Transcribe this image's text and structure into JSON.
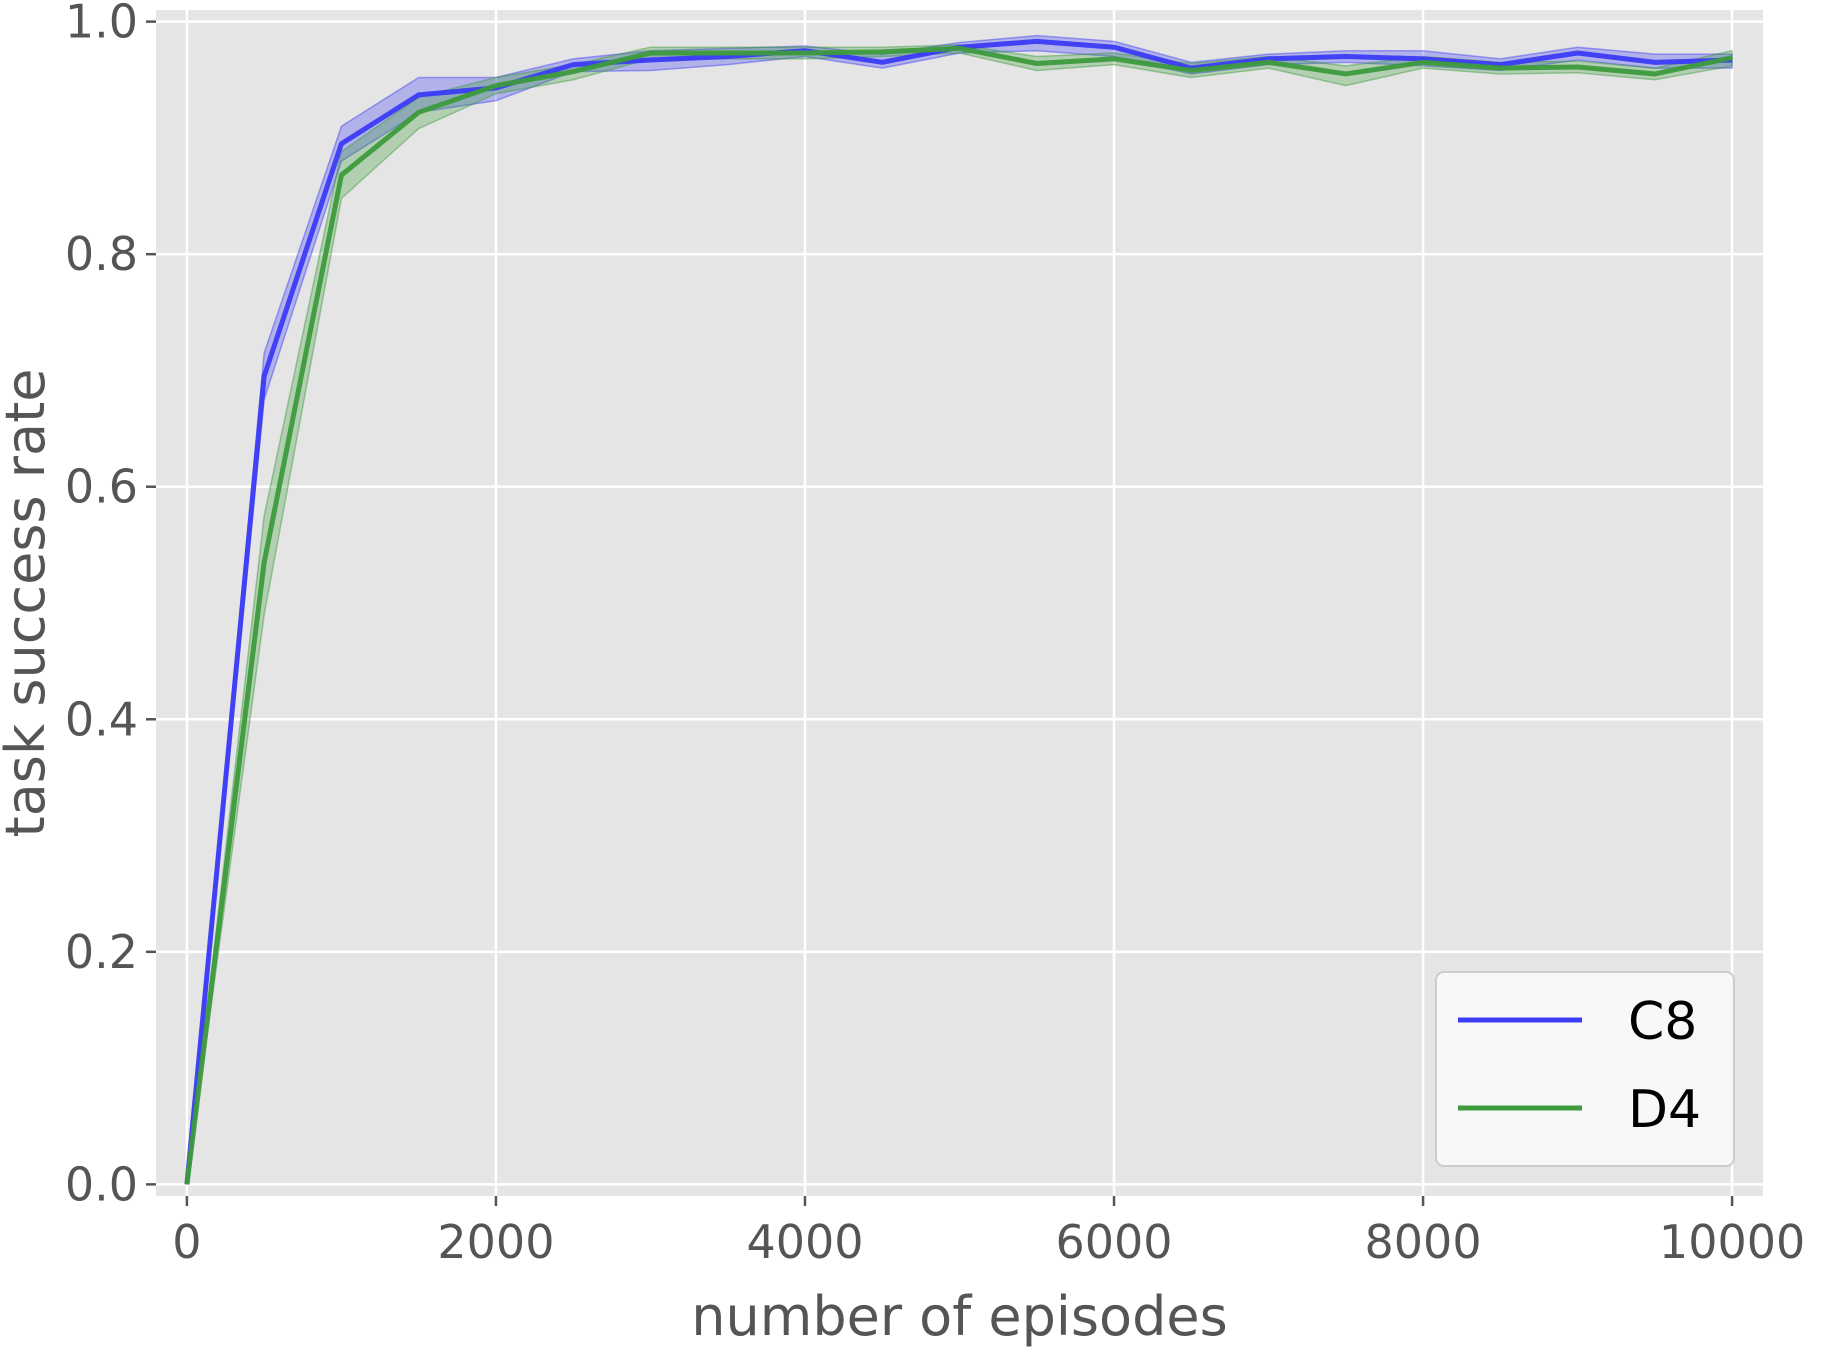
{
  "chart_data": {
    "type": "line",
    "xlabel": "number of episodes",
    "ylabel": "task success rate",
    "xlim": [
      -200,
      10200
    ],
    "ylim": [
      -0.01,
      1.01
    ],
    "xticks": [
      0,
      2000,
      4000,
      6000,
      8000,
      10000
    ],
    "yticks": [
      0.0,
      0.2,
      0.4,
      0.6,
      0.8,
      1.0
    ],
    "xtick_labels": [
      "0",
      "2000",
      "4000",
      "6000",
      "8000",
      "10000"
    ],
    "ytick_labels": [
      "0.0",
      "0.2",
      "0.4",
      "0.6",
      "0.8",
      "1.0"
    ],
    "grid": true,
    "legend_position": "lower-right",
    "x": [
      0,
      500,
      1000,
      1500,
      2000,
      2500,
      3000,
      3500,
      4000,
      4500,
      5000,
      5500,
      6000,
      6500,
      7000,
      7500,
      8000,
      8500,
      9000,
      9500,
      10000
    ],
    "series": [
      {
        "name": "C8",
        "color": "#3b3bf5",
        "values": [
          0.0,
          0.695,
          0.895,
          0.937,
          0.943,
          0.963,
          0.967,
          0.97,
          0.975,
          0.965,
          0.978,
          0.983,
          0.978,
          0.96,
          0.968,
          0.97,
          0.968,
          0.963,
          0.973,
          0.965,
          0.967
        ],
        "lower": [
          0.0,
          0.675,
          0.88,
          0.922,
          0.932,
          0.957,
          0.958,
          0.963,
          0.97,
          0.96,
          0.973,
          0.975,
          0.97,
          0.955,
          0.963,
          0.965,
          0.962,
          0.958,
          0.967,
          0.96,
          0.96
        ],
        "upper": [
          0.0,
          0.715,
          0.91,
          0.952,
          0.952,
          0.968,
          0.975,
          0.977,
          0.979,
          0.972,
          0.982,
          0.988,
          0.983,
          0.965,
          0.972,
          0.975,
          0.975,
          0.968,
          0.978,
          0.972,
          0.972
        ]
      },
      {
        "name": "D4",
        "color": "#3d9a3d",
        "values": [
          0.0,
          0.535,
          0.868,
          0.922,
          0.945,
          0.957,
          0.973,
          0.973,
          0.973,
          0.974,
          0.977,
          0.964,
          0.968,
          0.958,
          0.965,
          0.955,
          0.965,
          0.96,
          0.961,
          0.955,
          0.969
        ],
        "lower": [
          0.0,
          0.49,
          0.848,
          0.908,
          0.938,
          0.95,
          0.968,
          0.968,
          0.968,
          0.97,
          0.973,
          0.958,
          0.963,
          0.952,
          0.96,
          0.945,
          0.96,
          0.955,
          0.956,
          0.95,
          0.962
        ],
        "upper": [
          0.0,
          0.575,
          0.888,
          0.935,
          0.952,
          0.963,
          0.978,
          0.978,
          0.978,
          0.978,
          0.98,
          0.97,
          0.973,
          0.964,
          0.97,
          0.962,
          0.97,
          0.965,
          0.966,
          0.96,
          0.975
        ]
      }
    ]
  }
}
